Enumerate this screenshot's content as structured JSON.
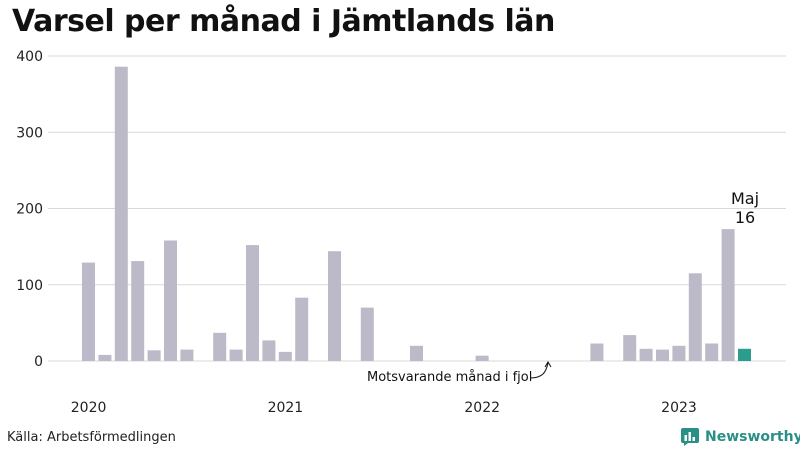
{
  "chart_data": {
    "type": "bar",
    "title": "Varsel per månad i Jämtlands län",
    "source": "Källa: Arbetsförmedlingen",
    "brand": "Newsworthy",
    "ylim": [
      0,
      400
    ],
    "yticks": [
      0,
      100,
      200,
      300,
      400
    ],
    "year_labels": [
      "2020",
      "2021",
      "2022",
      "2023"
    ],
    "months": 41,
    "values": [
      129,
      8,
      386,
      131,
      14,
      158,
      15,
      0,
      37,
      15,
      152,
      27,
      12,
      83,
      0,
      144,
      0,
      70,
      0,
      0,
      20,
      0,
      0,
      0,
      7,
      0,
      0,
      0,
      0,
      0,
      0,
      23,
      0,
      34,
      16,
      15,
      20,
      115,
      23,
      173,
      16
    ],
    "highlight": {
      "label": "Maj",
      "value": "16"
    },
    "reference_annotation": "Motsvarande månad i fjol",
    "colors": {
      "bar": "#bcbac8",
      "reference_bar": "#3a3a3a",
      "highlight_bar": "#2a9d8f",
      "grid": "#d9d9d9",
      "brand": "#2a8f86"
    }
  }
}
